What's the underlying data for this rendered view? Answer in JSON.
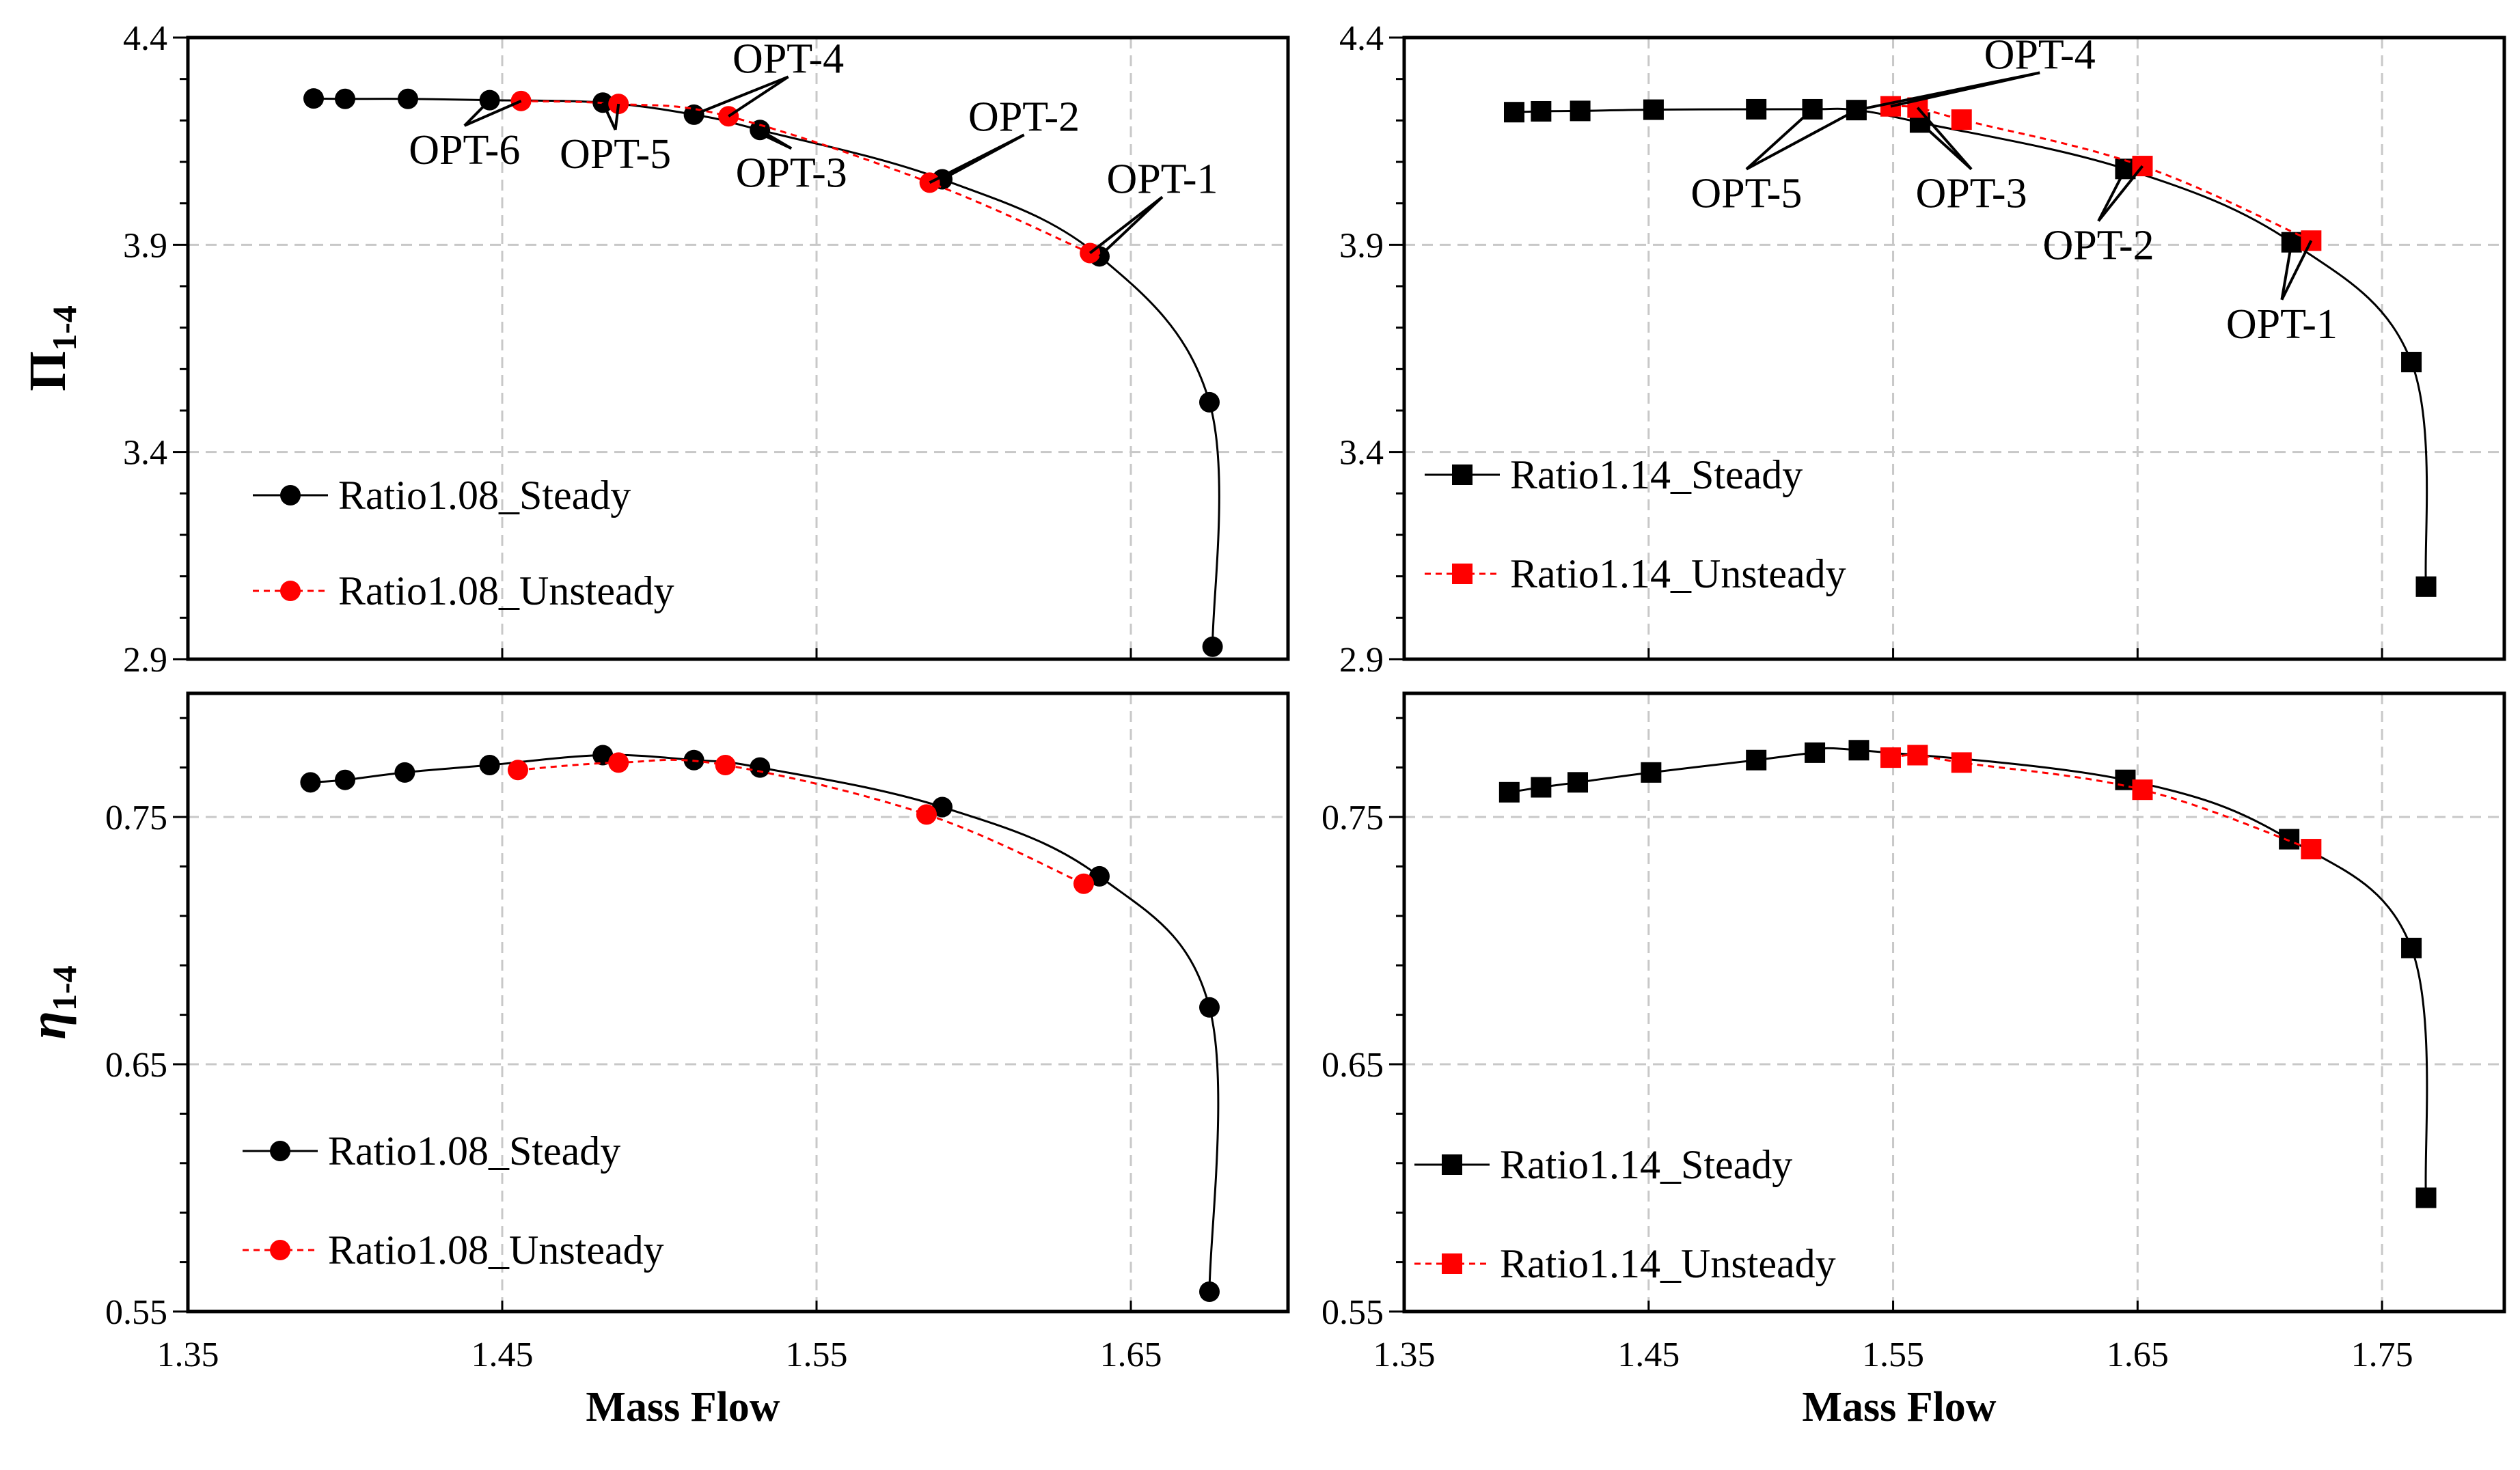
{
  "chart_data": [
    {
      "id": "pi-108",
      "type": "line",
      "ylabel": "Π",
      "ylabel_sub": "1-4",
      "ylabel_style": "upright",
      "xlabel": "",
      "xlim": [
        1.35,
        1.7
      ],
      "ylim": [
        2.9,
        4.4
      ],
      "x_ticks": [
        1.35,
        1.45,
        1.55,
        1.65
      ],
      "x_tick_labels": [
        "1.35",
        "1.45",
        "1.55",
        "1.65"
      ],
      "show_x_tick_labels": false,
      "y_ticks": [
        2.9,
        3.4,
        3.9,
        4.4
      ],
      "y_tick_labels": [
        "2.9",
        "3.4",
        "3.9",
        "4.4"
      ],
      "y_tick_side": "left",
      "grid": true,
      "legend_position": "lower-left",
      "series": [
        {
          "name": "Ratio1.08_Steady",
          "color": "#000000",
          "marker": "circle",
          "dashed": false,
          "x": [
            1.39,
            1.4,
            1.42,
            1.446,
            1.482,
            1.511,
            1.532,
            1.59,
            1.64,
            1.675,
            1.676
          ],
          "y": [
            4.253,
            4.252,
            4.252,
            4.249,
            4.243,
            4.214,
            4.177,
            4.058,
            3.872,
            3.52,
            2.93
          ]
        },
        {
          "name": "Ratio1.08_Unsteady",
          "color": "#ff0000",
          "marker": "circle",
          "dashed": true,
          "x": [
            1.456,
            1.487,
            1.522,
            1.586,
            1.637
          ],
          "y": [
            4.247,
            4.24,
            4.21,
            4.05,
            3.88
          ]
        }
      ],
      "annotations": [
        {
          "label": "OPT-6",
          "x": 1.438,
          "y": 4.105,
          "anchor": "middle",
          "targets": [
            [
              1.456,
              4.247
            ],
            [
              1.446,
              4.249
            ]
          ]
        },
        {
          "label": "OPT-5",
          "x": 1.486,
          "y": 4.095,
          "anchor": "middle",
          "targets": [
            [
              1.487,
              4.24
            ],
            [
              1.482,
              4.243
            ]
          ]
        },
        {
          "label": "OPT-4",
          "x": 1.541,
          "y": 4.325,
          "anchor": "middle",
          "targets": [
            [
              1.511,
              4.214
            ],
            [
              1.522,
              4.21
            ]
          ]
        },
        {
          "label": "OPT-3",
          "x": 1.542,
          "y": 4.05,
          "anchor": "middle",
          "targets": [
            [
              1.532,
              4.177
            ],
            [
              1.533,
              4.165
            ]
          ]
        },
        {
          "label": "OPT-2",
          "x": 1.616,
          "y": 4.185,
          "anchor": "middle",
          "targets": [
            [
              1.586,
              4.05
            ],
            [
              1.59,
              4.058
            ]
          ]
        },
        {
          "label": "OPT-1",
          "x": 1.66,
          "y": 4.035,
          "anchor": "middle",
          "targets": [
            [
              1.637,
              3.88
            ],
            [
              1.64,
              3.872
            ]
          ]
        }
      ]
    },
    {
      "id": "pi-114",
      "type": "line",
      "ylabel": "",
      "xlabel": "",
      "xlim": [
        1.35,
        1.8
      ],
      "ylim": [
        2.9,
        4.4
      ],
      "x_ticks": [
        1.35,
        1.45,
        1.55,
        1.65,
        1.75
      ],
      "x_tick_labels": [
        "1.35",
        "1.45",
        "1.55",
        "1.65",
        "1.75"
      ],
      "show_x_tick_labels": false,
      "y_ticks": [
        2.9,
        3.4,
        3.9,
        4.4
      ],
      "y_tick_labels": [
        "2.9",
        "3.4",
        "3.9",
        "4.4"
      ],
      "y_tick_side": "left",
      "grid": true,
      "legend_position": "lower-left",
      "series": [
        {
          "name": "Ratio1.14_Steady",
          "color": "#000000",
          "marker": "square",
          "dashed": false,
          "x": [
            1.395,
            1.406,
            1.422,
            1.452,
            1.494,
            1.517,
            1.535,
            1.561,
            1.645,
            1.713,
            1.762,
            1.768
          ],
          "y": [
            4.22,
            4.222,
            4.223,
            4.226,
            4.227,
            4.227,
            4.225,
            4.195,
            4.083,
            3.906,
            3.617,
            3.075
          ]
        },
        {
          "name": "Ratio1.14_Unsteady",
          "color": "#ff0000",
          "marker": "square",
          "dashed": true,
          "x": [
            1.549,
            1.56,
            1.578,
            1.652,
            1.721
          ],
          "y": [
            4.234,
            4.231,
            4.202,
            4.09,
            3.91
          ]
        }
      ],
      "annotations": [
        {
          "label": "OPT-4",
          "x": 1.61,
          "y": 4.335,
          "anchor": "middle",
          "targets": [
            [
              1.535,
              4.225
            ],
            [
              1.549,
              4.234
            ]
          ]
        },
        {
          "label": "OPT-5",
          "x": 1.49,
          "y": 4.0,
          "anchor": "middle",
          "targets": [
            [
              1.517,
              4.227
            ],
            [
              1.535,
              4.225
            ]
          ]
        },
        {
          "label": "OPT-3",
          "x": 1.582,
          "y": 4.0,
          "anchor": "middle",
          "targets": [
            [
              1.561,
              4.195
            ],
            [
              1.56,
              4.231
            ]
          ]
        },
        {
          "label": "OPT-2",
          "x": 1.634,
          "y": 3.875,
          "anchor": "middle",
          "targets": [
            [
              1.645,
              4.083
            ],
            [
              1.652,
              4.09
            ]
          ]
        },
        {
          "label": "OPT-1",
          "x": 1.709,
          "y": 3.685,
          "anchor": "middle",
          "targets": [
            [
              1.713,
              3.906
            ],
            [
              1.721,
              3.91
            ]
          ]
        }
      ]
    },
    {
      "id": "eta-108",
      "type": "line",
      "ylabel": "η",
      "ylabel_sub": "1-4",
      "ylabel_style": "italic",
      "xlabel": "Mass Flow",
      "xlim": [
        1.35,
        1.7
      ],
      "ylim": [
        0.55,
        0.8
      ],
      "x_ticks": [
        1.35,
        1.45,
        1.55,
        1.65
      ],
      "x_tick_labels": [
        "1.35",
        "1.45",
        "1.55",
        "1.65"
      ],
      "show_x_tick_labels": true,
      "y_ticks": [
        0.55,
        0.65,
        0.75
      ],
      "y_tick_labels": [
        "0.55",
        "0.65",
        "0.75"
      ],
      "y_tick_side": "left",
      "grid": true,
      "legend_position": "lower-left",
      "series": [
        {
          "name": "Ratio1.08_Steady",
          "color": "#000000",
          "marker": "circle",
          "dashed": false,
          "x": [
            1.389,
            1.4,
            1.419,
            1.446,
            1.482,
            1.511,
            1.532,
            1.59,
            1.64,
            1.675,
            1.675
          ],
          "y": [
            0.764,
            0.765,
            0.768,
            0.771,
            0.775,
            0.773,
            0.77,
            0.754,
            0.726,
            0.673,
            0.558
          ]
        },
        {
          "name": "Ratio1.08_Unsteady",
          "color": "#ff0000",
          "marker": "circle",
          "dashed": true,
          "x": [
            1.455,
            1.487,
            1.521,
            1.585,
            1.635
          ],
          "y": [
            0.769,
            0.772,
            0.771,
            0.751,
            0.723
          ]
        }
      ],
      "annotations": []
    },
    {
      "id": "eta-114",
      "type": "line",
      "ylabel": "",
      "xlabel": "Mass Flow",
      "xlim": [
        1.35,
        1.8
      ],
      "ylim": [
        0.55,
        0.8
      ],
      "x_ticks": [
        1.35,
        1.45,
        1.55,
        1.65,
        1.75
      ],
      "x_tick_labels": [
        "1.35",
        "1.45",
        "1.55",
        "1.65",
        "1.75"
      ],
      "show_x_tick_labels": true,
      "y_ticks": [
        0.55,
        0.65,
        0.75
      ],
      "y_tick_labels": [
        "0.55",
        "0.65",
        "0.75"
      ],
      "y_tick_side": "left",
      "grid": true,
      "legend_position": "lower-left",
      "series": [
        {
          "name": "Ratio1.14_Steady",
          "color": "#000000",
          "marker": "square",
          "dashed": false,
          "x": [
            1.393,
            1.406,
            1.421,
            1.451,
            1.494,
            1.518,
            1.536,
            1.645,
            1.712,
            1.762,
            1.768
          ],
          "y": [
            0.76,
            0.762,
            0.764,
            0.768,
            0.773,
            0.776,
            0.777,
            0.765,
            0.741,
            0.697,
            0.596
          ]
        },
        {
          "name": "Ratio1.14_Unsteady",
          "color": "#ff0000",
          "marker": "square",
          "dashed": true,
          "x": [
            1.549,
            1.56,
            1.578,
            1.652,
            1.721
          ],
          "y": [
            0.774,
            0.775,
            0.772,
            0.761,
            0.737
          ]
        }
      ],
      "annotations": []
    }
  ]
}
